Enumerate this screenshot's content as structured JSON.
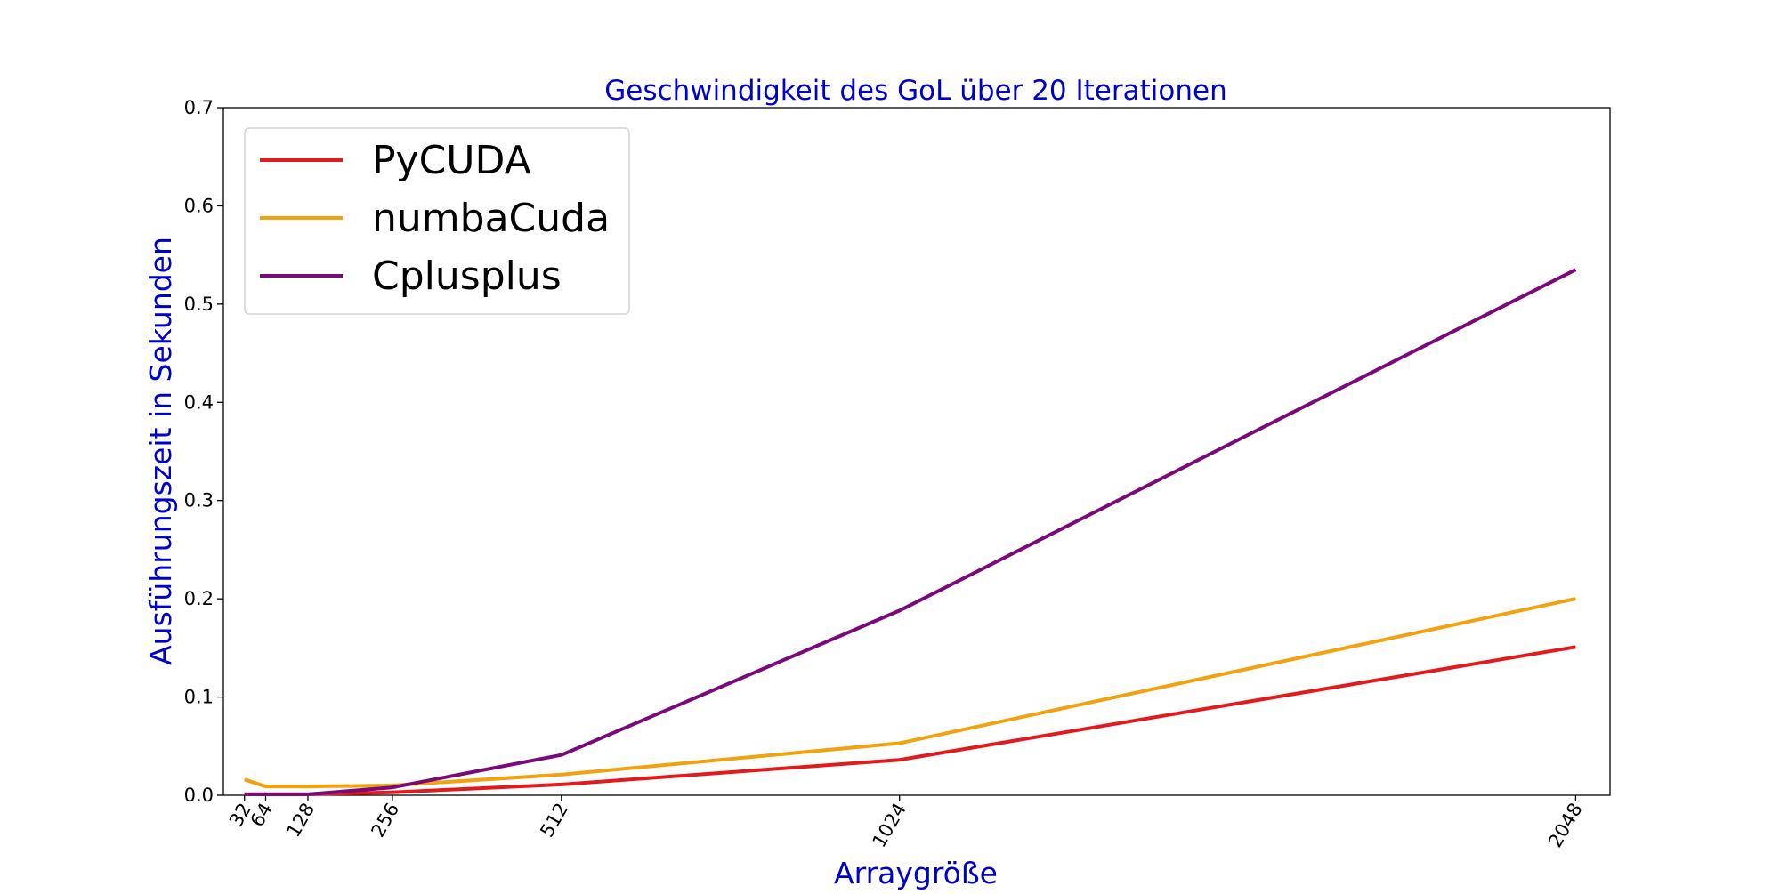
{
  "colors": {
    "title": "#0000cc",
    "axis_label": "#0000cc",
    "pycuda": "#e31a1c",
    "numbacuda": "#f2a20f",
    "cplusplus": "#7a0a7a"
  },
  "chart_data": {
    "type": "line",
    "title": "Geschwindigkeit des GoL über 20 Iterationen",
    "xlabel": "Arraygröße",
    "ylabel": "Ausführungszeit in Sekunden",
    "x": [
      32,
      64,
      128,
      256,
      512,
      1024,
      2048
    ],
    "x_tick_labels": [
      "32",
      "64",
      "128",
      "256",
      "512",
      "1024",
      "2048"
    ],
    "y_ticks": [
      "0.0",
      "0.1",
      "0.2",
      "0.3",
      "0.4",
      "0.5",
      "0.6",
      "0.7"
    ],
    "xlim": [
      0,
      2100
    ],
    "ylim": [
      0,
      0.7
    ],
    "grid": false,
    "legend_position": "upper-left",
    "series": [
      {
        "name": "PyCUDA",
        "color_key": "pycuda",
        "values": [
          0.001,
          0.001,
          0.001,
          0.003,
          0.011,
          0.036,
          0.151
        ]
      },
      {
        "name": "numbaCuda",
        "color_key": "numbacuda",
        "values": [
          0.016,
          0.009,
          0.009,
          0.01,
          0.021,
          0.053,
          0.2
        ]
      },
      {
        "name": "Cplusplus",
        "color_key": "cplusplus",
        "values": [
          0.001,
          0.001,
          0.001,
          0.008,
          0.041,
          0.188,
          0.535
        ]
      }
    ]
  }
}
